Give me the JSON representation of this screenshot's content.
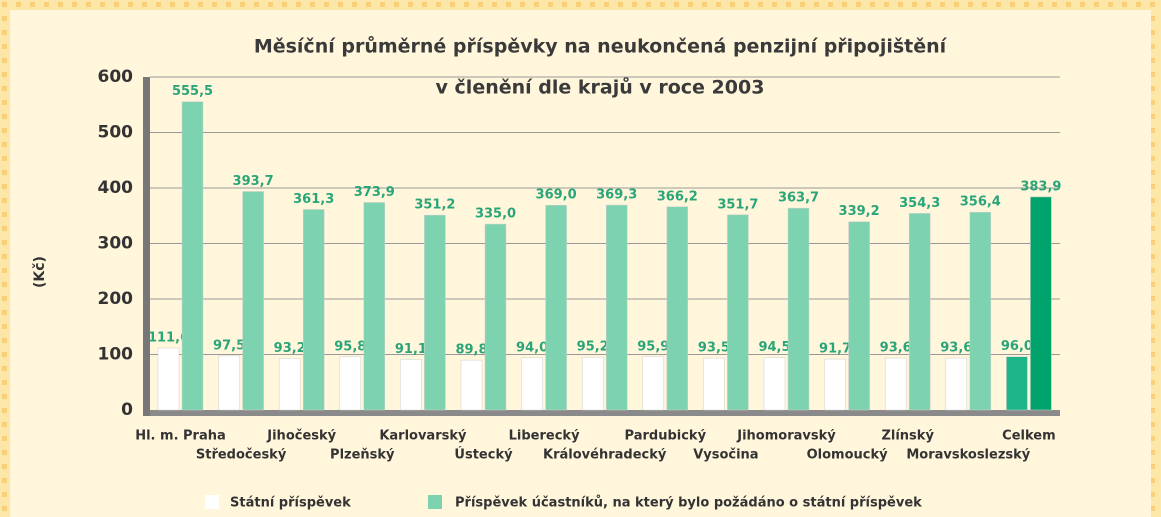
{
  "chart_data": {
    "type": "bar",
    "title": "Měsíční průměrné příspěvky na neukončená penzijní připojištění",
    "subtitle": "v členění dle krajů v roce 2003",
    "y_label": "(Kč)",
    "categories": [
      "Hl. m. Praha",
      "Středočeský",
      "Jihočeský",
      "Plzeňský",
      "Karlovarský",
      "Ústecký",
      "Liberecký",
      "Královéhradecký",
      "Pardubický",
      "Vysočina",
      "Jihomoravský",
      "Olomoucký",
      "Zlínský",
      "Moravskoslezský",
      "Celkem"
    ],
    "series": [
      {
        "name": "Státní příspěvek",
        "color": "#ffffff",
        "colors": [
          "#ffffff",
          "#ffffff",
          "#ffffff",
          "#ffffff",
          "#ffffff",
          "#ffffff",
          "#ffffff",
          "#ffffff",
          "#ffffff",
          "#ffffff",
          "#ffffff",
          "#ffffff",
          "#ffffff",
          "#ffffff",
          "#1fb58a"
        ],
        "values": [
          111.6,
          97.5,
          93.2,
          95.8,
          91.1,
          89.8,
          94.0,
          95.2,
          95.9,
          93.5,
          94.5,
          91.7,
          93.6,
          93.6,
          96.0
        ],
        "value_labels": [
          "111,6",
          "97,5",
          "93,2",
          "95,8",
          "91,1",
          "89,8",
          "94,0",
          "95,2",
          "95,9",
          "93,5",
          "94,5",
          "91,7",
          "93,6",
          "93,6",
          "96,0"
        ]
      },
      {
        "name": "Příspěvek účastníků, na který bylo požádáno o státní příspěvek",
        "color": "#7dd3b0",
        "colors": [
          "#7dd3b0",
          "#7dd3b0",
          "#7dd3b0",
          "#7dd3b0",
          "#7dd3b0",
          "#7dd3b0",
          "#7dd3b0",
          "#7dd3b0",
          "#7dd3b0",
          "#7dd3b0",
          "#7dd3b0",
          "#7dd3b0",
          "#7dd3b0",
          "#7dd3b0",
          "#00a36c"
        ],
        "values": [
          555.5,
          393.7,
          361.3,
          373.9,
          351.2,
          335.0,
          369.0,
          369.3,
          366.2,
          351.7,
          363.7,
          339.2,
          354.3,
          356.4,
          383.9
        ],
        "value_labels": [
          "555,5",
          "393,7",
          "361,3",
          "373,9",
          "351,2",
          "335,0",
          "369,0",
          "369,3",
          "366,2",
          "351,7",
          "363,7",
          "339,2",
          "354,3",
          "356,4",
          "383,9"
        ]
      }
    ],
    "ylim": [
      0,
      600
    ],
    "yticks": [
      0,
      100,
      200,
      300,
      400,
      500,
      600
    ],
    "grid": true
  }
}
